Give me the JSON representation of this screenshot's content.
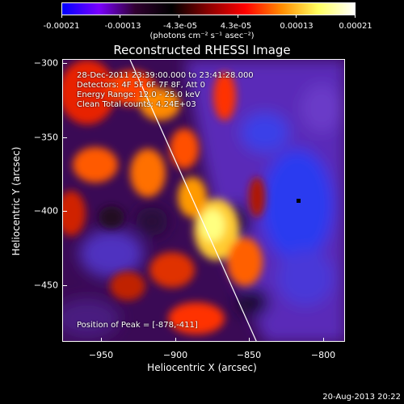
{
  "colorbar": {
    "ticks": [
      "-0.00021",
      "-0.00013",
      "-4.3e-05",
      "4.3e-05",
      "0.00013",
      "0.00021"
    ],
    "units": "(photons cm⁻² s⁻¹ asec⁻²)",
    "gradient": [
      "#0000ff",
      "#7a00ff",
      "#300030",
      "#000000",
      "#8b0000",
      "#ff0000",
      "#ff8c00",
      "#ffff60",
      "#ffffff"
    ]
  },
  "title": "Reconstructed RHESSI Image",
  "info": {
    "line1": "28-Dec-2011 23:39:00.000 to 23:41:28.000",
    "line2": "Detectors: 4F 5F 6F 7F 8F, Att 0",
    "line3": "Energy Range: 12.0 - 25.0 keV",
    "line4": "Clean    Total counts: 4.24E+03",
    "peak": "Position of Peak = [-878,-411]"
  },
  "axes": {
    "ylabel": "Heliocentric Y (arcsec)",
    "xlabel": "Heliocentric X (arcsec)",
    "yticks": [
      "−300",
      "−350",
      "−400",
      "−450"
    ],
    "xticks": [
      "−950",
      "−900",
      "−850",
      "−800"
    ]
  },
  "footer": {
    "timestamp": "20-Aug-2013 20:22"
  }
}
